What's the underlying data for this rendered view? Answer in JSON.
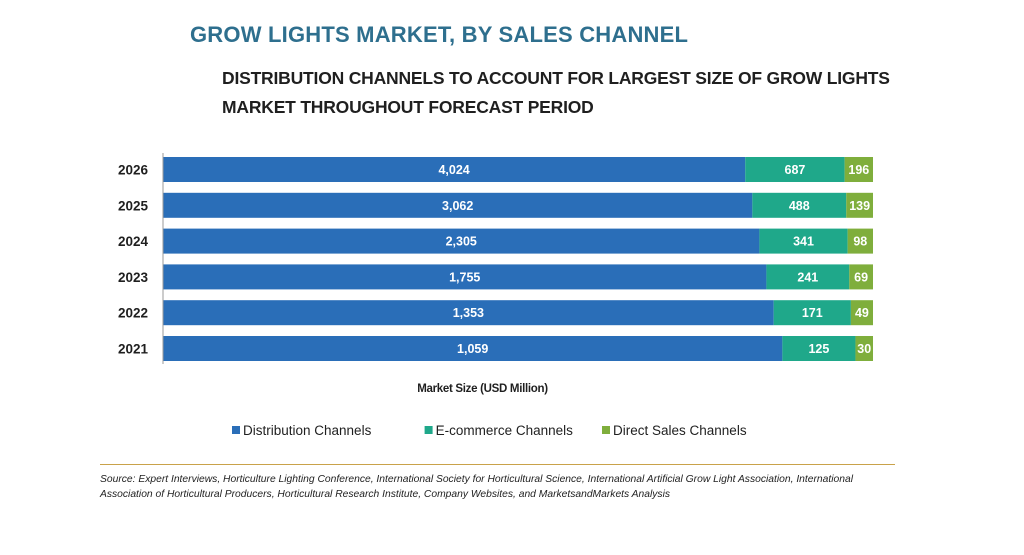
{
  "title": "GROW LIGHTS MARKET, BY SALES CHANNEL",
  "subtitle": "DISTRIBUTION CHANNELS TO ACCOUNT FOR LARGEST SIZE OF GROW LIGHTS MARKET THROUGHOUT FORECAST PERIOD",
  "source": "Source: Expert Interviews, Horticulture Lighting Conference, International Society for Horticultural Science, International Artificial Grow Light Association, International Association of Horticultural Producers, Horticultural Research Institute, Company Websites, and MarketsandMarkets Analysis",
  "chart_data": {
    "type": "bar",
    "orientation": "horizontal",
    "stacked": true,
    "normalized": true,
    "categories": [
      "2026",
      "2025",
      "2024",
      "2023",
      "2022",
      "2021"
    ],
    "series": [
      {
        "name": "Distribution Channels",
        "color": "#2a6eb8",
        "values": [
          4024,
          3062,
          2305,
          1755,
          1353,
          1059
        ]
      },
      {
        "name": "E-commerce Channels",
        "color": "#1fa88a",
        "values": [
          687,
          488,
          341,
          241,
          171,
          125
        ]
      },
      {
        "name": "Direct Sales Channels",
        "color": "#7fae3c",
        "values": [
          196,
          139,
          98,
          69,
          49,
          30
        ]
      }
    ],
    "xlabel": "Market Size (USD Million)",
    "ylabel": "",
    "data_labels": true,
    "grid": false,
    "legend": "bottom"
  }
}
